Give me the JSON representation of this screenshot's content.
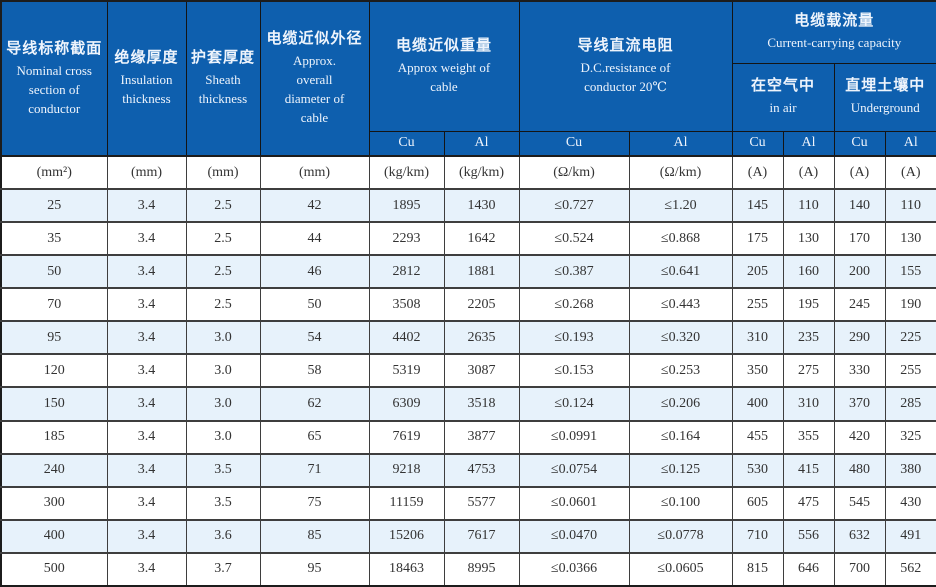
{
  "colors": {
    "header_blue": "#0e5fae",
    "header_text": "#eef4fc",
    "row_alt_blue": "#e7f2fb",
    "row_white": "#ffffff",
    "body_text": "#333333",
    "border_dark": "#1c1c1c",
    "grid_line": "#3e3e3e"
  },
  "header": {
    "nominal": {
      "zh": "导线标称截面",
      "en": "Nominal  cross section of conductor"
    },
    "insulation": {
      "zh": "绝缘厚度",
      "en": "Insulation thickness"
    },
    "sheath": {
      "zh": "护套厚度",
      "en": "Sheath thickness"
    },
    "diameter": {
      "zh": "电缆近似外径",
      "en": "Approx. overall diameter of cable"
    },
    "weight": {
      "zh": "电缆近似重量",
      "en": "Approx weight of cable"
    },
    "resistance": {
      "zh": "导线直流电阻",
      "en": "D.C.resistance of conductor 20℃"
    },
    "capacity": {
      "zh": "电缆载流量",
      "en": "Current-carrying capacity"
    },
    "in_air": {
      "zh": "在空气中",
      "en": "in air"
    },
    "underground": {
      "zh": "直埋土壤中",
      "en": "Underground"
    },
    "materials": [
      "Cu",
      "Al",
      "Cu",
      "Al",
      "Cu",
      "Al",
      "Cu",
      "Al"
    ]
  },
  "units": [
    "(mm²)",
    "(mm)",
    "(mm)",
    "(mm)",
    "(kg/km)",
    "(kg/km)",
    "(Ω/km)",
    "(Ω/km)",
    "(A)",
    "(A)",
    "(A)",
    "(A)"
  ],
  "rows": [
    [
      "25",
      "3.4",
      "2.5",
      "42",
      "1895",
      "1430",
      "≤0.727",
      "≤1.20",
      "145",
      "110",
      "140",
      "110"
    ],
    [
      "35",
      "3.4",
      "2.5",
      "44",
      "2293",
      "1642",
      "≤0.524",
      "≤0.868",
      "175",
      "130",
      "170",
      "130"
    ],
    [
      "50",
      "3.4",
      "2.5",
      "46",
      "2812",
      "1881",
      "≤0.387",
      "≤0.641",
      "205",
      "160",
      "200",
      "155"
    ],
    [
      "70",
      "3.4",
      "2.5",
      "50",
      "3508",
      "2205",
      "≤0.268",
      "≤0.443",
      "255",
      "195",
      "245",
      "190"
    ],
    [
      "95",
      "3.4",
      "3.0",
      "54",
      "4402",
      "2635",
      "≤0.193",
      "≤0.320",
      "310",
      "235",
      "290",
      "225"
    ],
    [
      "120",
      "3.4",
      "3.0",
      "58",
      "5319",
      "3087",
      "≤0.153",
      "≤0.253",
      "350",
      "275",
      "330",
      "255"
    ],
    [
      "150",
      "3.4",
      "3.0",
      "62",
      "6309",
      "3518",
      "≤0.124",
      "≤0.206",
      "400",
      "310",
      "370",
      "285"
    ],
    [
      "185",
      "3.4",
      "3.0",
      "65",
      "7619",
      "3877",
      "≤0.0991",
      "≤0.164",
      "455",
      "355",
      "420",
      "325"
    ],
    [
      "240",
      "3.4",
      "3.5",
      "71",
      "9218",
      "4753",
      "≤0.0754",
      "≤0.125",
      "530",
      "415",
      "480",
      "380"
    ],
    [
      "300",
      "3.4",
      "3.5",
      "75",
      "11159",
      "5577",
      "≤0.0601",
      "≤0.100",
      "605",
      "475",
      "545",
      "430"
    ],
    [
      "400",
      "3.4",
      "3.6",
      "85",
      "15206",
      "7617",
      "≤0.0470",
      "≤0.0778",
      "710",
      "556",
      "632",
      "491"
    ],
    [
      "500",
      "3.4",
      "3.7",
      "95",
      "18463",
      "8995",
      "≤0.0366",
      "≤0.0605",
      "815",
      "646",
      "700",
      "562"
    ]
  ]
}
